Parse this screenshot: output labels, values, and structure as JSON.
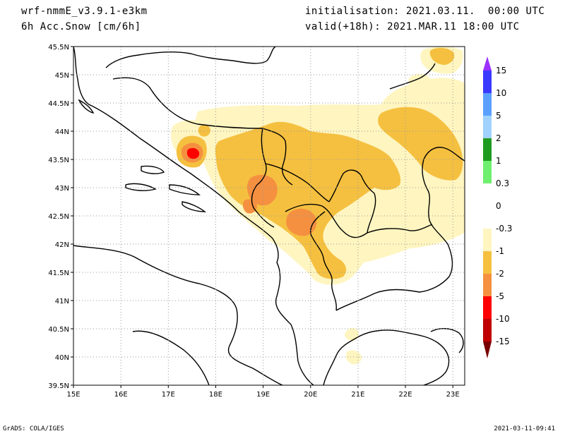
{
  "header": {
    "model": "wrf-nmmE_v3.9.1-e3km",
    "field": "6h Acc.Snow [cm/6h]",
    "init": "initialisation: 2021.03.11.  00:00 UTC",
    "valid": "valid(+18h): 2021.MAR.11 18:00 UTC"
  },
  "footer": {
    "credit": "GrADS: COLA/IGES",
    "timestamp": "2021-03-11-09:41"
  },
  "map": {
    "lon_range": [
      15,
      23.25
    ],
    "lat_range": [
      39.5,
      45.5
    ],
    "lon_ticks": [
      "15E",
      "16E",
      "17E",
      "18E",
      "19E",
      "20E",
      "21E",
      "22E",
      "23E"
    ],
    "lat_ticks": [
      "39.5N",
      "40N",
      "40.5N",
      "41N",
      "41.5N",
      "42N",
      "42.5N",
      "43N",
      "43.5N",
      "44N",
      "44.5N",
      "45N",
      "45.5N"
    ],
    "grid": true
  },
  "colorbar": {
    "labels": [
      "15",
      "10",
      "5",
      "2",
      "1",
      "0.3",
      "0",
      "-0.3",
      "-1",
      "-2",
      "-5",
      "-10",
      "-15"
    ],
    "colors": [
      "#9b30ff",
      "#3a3aff",
      "#5aa0ff",
      "#a0d2ff",
      "#1e9b1e",
      "#6ef06e",
      "#ffffff",
      "#ffffff",
      "#fff5c0",
      "#f5c040",
      "#f59040",
      "#ff0000",
      "#c00000",
      "#7a0000"
    ]
  }
}
